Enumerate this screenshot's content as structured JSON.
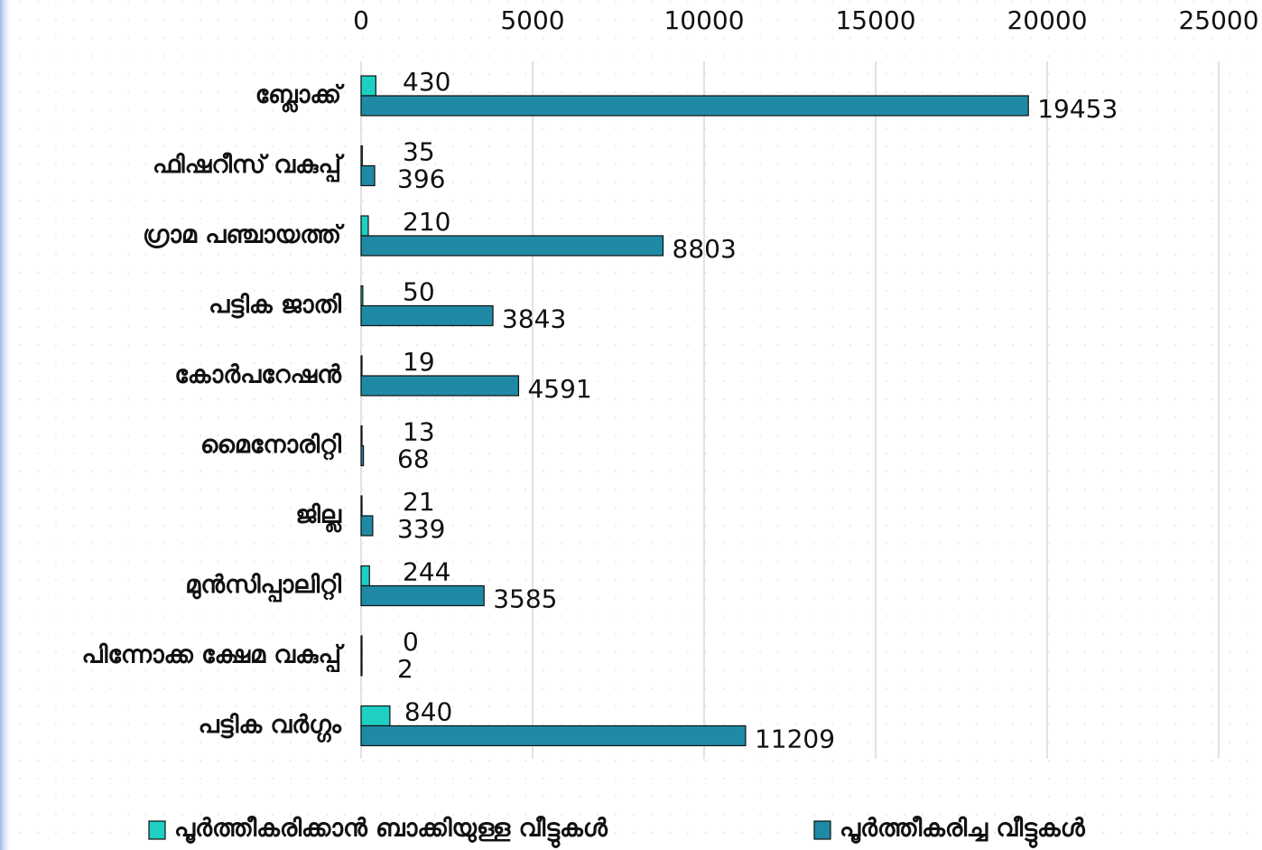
{
  "chart_data": {
    "type": "bar",
    "orientation": "horizontal",
    "categories": [
      "ബ്ലോക്ക്",
      "ഫിഷറീസ് വകുപ്പ്",
      "ഗ്രാമ പഞ്ചായത്ത്",
      "പട്ടിക ജാതി",
      "കോർപറേഷൻ",
      "മൈനോരിറ്റി",
      "ജില്ല",
      "മുൻസിപ്പാലിറ്റി",
      "പിന്നോക്ക ക്ഷേമ വകുപ്പ്",
      "പട്ടിക വർഗ്ഗം"
    ],
    "series": [
      {
        "name": "പൂർത്തീകരിക്കാൻ ബാക്കിയുള്ള വീട്ടുകൾ",
        "color": "#1ecfc4",
        "values": [
          430,
          35,
          210,
          50,
          19,
          13,
          21,
          244,
          0,
          840
        ]
      },
      {
        "name": "പൂർത്തീകരിച്ച വീട്ടുകൾ",
        "color": "#1f8aa6",
        "values": [
          19453,
          396,
          8803,
          3843,
          4591,
          68,
          339,
          3585,
          2,
          11209
        ]
      }
    ],
    "xlim": [
      0,
      25000
    ],
    "xticks": [
      0,
      5000,
      10000,
      15000,
      20000,
      25000
    ],
    "grid": true,
    "legend": "bottom"
  }
}
